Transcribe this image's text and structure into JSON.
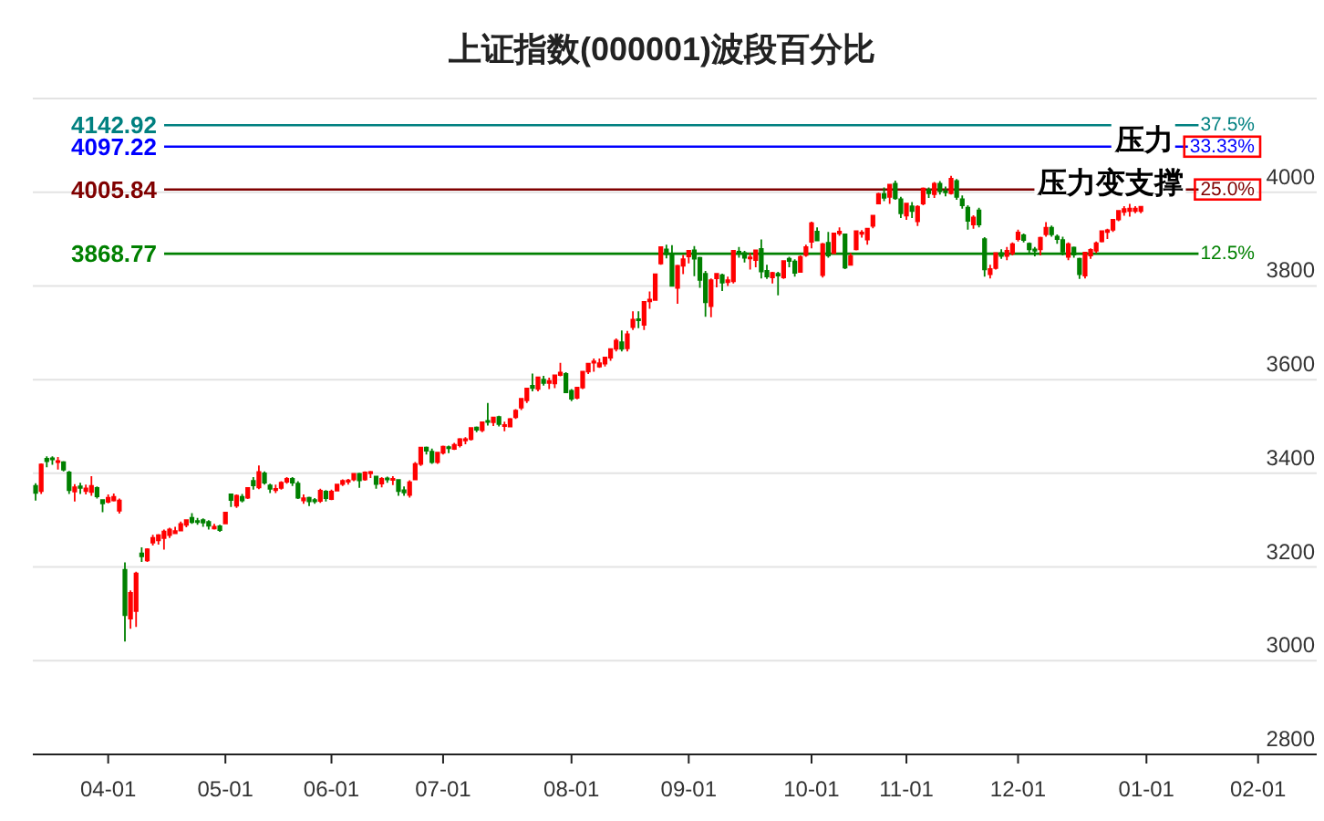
{
  "chart_data": {
    "type": "candlestick",
    "title": "上证指数(000001)波段百分比",
    "categories": [
      null,
      null,
      null,
      null,
      null,
      null,
      null,
      null,
      null,
      null,
      null,
      null,
      null,
      "04-01",
      null,
      null,
      null,
      null,
      null,
      null,
      null,
      null,
      null,
      null,
      null,
      null,
      null,
      null,
      null,
      null,
      null,
      null,
      null,
      null,
      "05-01",
      null,
      null,
      null,
      null,
      null,
      null,
      null,
      null,
      null,
      null,
      null,
      null,
      null,
      null,
      null,
      null,
      null,
      null,
      "06-01",
      null,
      null,
      null,
      null,
      null,
      null,
      null,
      null,
      null,
      null,
      null,
      null,
      null,
      null,
      null,
      null,
      null,
      null,
      null,
      "07-01",
      null,
      null,
      null,
      null,
      null,
      null,
      null,
      null,
      null,
      null,
      null,
      null,
      null,
      null,
      null,
      null,
      null,
      null,
      null,
      null,
      null,
      null,
      "08-01",
      null,
      null,
      null,
      null,
      null,
      null,
      null,
      null,
      null,
      null,
      null,
      null,
      null,
      null,
      null,
      null,
      null,
      null,
      null,
      null,
      "09-01",
      null,
      null,
      null,
      null,
      null,
      null,
      null,
      null,
      null,
      null,
      null,
      null,
      null,
      null,
      null,
      null,
      null,
      null,
      null,
      null,
      null,
      "10-01",
      null,
      null,
      null,
      null,
      null,
      null,
      null,
      null,
      null,
      null,
      null,
      null,
      null,
      null,
      null,
      null,
      "11-01",
      null,
      null,
      null,
      null,
      null,
      null,
      null,
      null,
      null,
      null,
      null,
      null,
      null,
      null,
      null,
      null,
      null,
      null,
      null,
      "12-01",
      null,
      null,
      null,
      null,
      null,
      null,
      null,
      null,
      null,
      null,
      null,
      null,
      null,
      null,
      null,
      null,
      null,
      null,
      null,
      null,
      null,
      null,
      "01-01",
      null,
      null,
      null,
      null,
      null,
      null,
      null,
      null,
      null,
      null,
      null,
      null,
      null,
      null,
      null,
      null,
      null,
      null,
      null,
      "02-01",
      null,
      null,
      null,
      null,
      null,
      null,
      null,
      null,
      null,
      null
    ],
    "ohlc": [
      [
        3373,
        3379,
        3342,
        3358
      ],
      [
        3362,
        3421,
        3356,
        3419
      ],
      [
        3431,
        3436,
        3413,
        3426
      ],
      [
        3432,
        3436,
        3418,
        3430
      ],
      [
        3425,
        3435,
        3408,
        3426
      ],
      [
        3424,
        3426,
        3404,
        3408
      ],
      [
        3402,
        3405,
        3356,
        3364
      ],
      [
        3361,
        3377,
        3340,
        3370
      ],
      [
        3372,
        3380,
        3356,
        3369
      ],
      [
        3362,
        3376,
        3355,
        3368
      ],
      [
        3360,
        3394,
        3352,
        3373
      ],
      [
        3369,
        3372,
        3346,
        3351
      ],
      [
        3343,
        3344,
        3317,
        3336
      ],
      [
        3339,
        3355,
        3336,
        3348
      ],
      [
        3342,
        3357,
        3340,
        3350
      ],
      [
        3320,
        3346,
        3314,
        3342
      ],
      [
        3194,
        3210,
        3041,
        3097
      ],
      [
        3090,
        3150,
        3068,
        3145
      ],
      [
        3106,
        3190,
        3072,
        3186
      ],
      [
        3229,
        3242,
        3211,
        3223
      ],
      [
        3214,
        3240,
        3211,
        3238
      ],
      [
        3252,
        3269,
        3246,
        3262
      ],
      [
        3257,
        3270,
        3248,
        3268
      ],
      [
        3262,
        3280,
        3237,
        3276
      ],
      [
        3268,
        3284,
        3262,
        3280
      ],
      [
        3272,
        3286,
        3270,
        3277
      ],
      [
        3278,
        3297,
        3276,
        3292
      ],
      [
        3290,
        3301,
        3285,
        3300
      ],
      [
        3305,
        3315,
        3292,
        3296
      ],
      [
        3298,
        3305,
        3290,
        3297
      ],
      [
        3300,
        3304,
        3286,
        3295
      ],
      [
        3296,
        3300,
        3280,
        3288
      ],
      [
        3282,
        3292,
        3280,
        3286
      ],
      [
        3287,
        3290,
        3275,
        3279
      ],
      [
        3293,
        3317,
        3292,
        3316
      ],
      [
        3355,
        3357,
        3328,
        3343
      ],
      [
        3331,
        3355,
        3326,
        3352
      ],
      [
        3350,
        3356,
        3338,
        3342
      ],
      [
        3348,
        3370,
        3345,
        3369
      ],
      [
        3384,
        3392,
        3365,
        3374
      ],
      [
        3370,
        3417,
        3366,
        3403
      ],
      [
        3400,
        3404,
        3376,
        3380
      ],
      [
        3374,
        3378,
        3358,
        3367
      ],
      [
        3364,
        3376,
        3358,
        3367
      ],
      [
        3369,
        3383,
        3365,
        3380
      ],
      [
        3382,
        3392,
        3378,
        3388
      ],
      [
        3388,
        3392,
        3373,
        3380
      ],
      [
        3378,
        3383,
        3345,
        3348
      ],
      [
        3342,
        3355,
        3335,
        3347
      ],
      [
        3348,
        3350,
        3330,
        3340
      ],
      [
        3343,
        3347,
        3335,
        3340
      ],
      [
        3341,
        3367,
        3337,
        3363
      ],
      [
        3361,
        3364,
        3340,
        3347
      ],
      [
        3345,
        3365,
        3343,
        3361
      ],
      [
        3363,
        3377,
        3362,
        3376
      ],
      [
        3377,
        3387,
        3373,
        3384
      ],
      [
        3382,
        3388,
        3376,
        3385
      ],
      [
        3387,
        3400,
        3383,
        3399
      ],
      [
        3399,
        3401,
        3369,
        3385
      ],
      [
        3387,
        3404,
        3384,
        3402
      ],
      [
        3400,
        3405,
        3390,
        3403
      ],
      [
        3393,
        3395,
        3367,
        3377
      ],
      [
        3378,
        3392,
        3370,
        3388
      ],
      [
        3389,
        3393,
        3380,
        3387
      ],
      [
        3387,
        3394,
        3375,
        3388
      ],
      [
        3386,
        3387,
        3352,
        3362
      ],
      [
        3364,
        3372,
        3352,
        3359
      ],
      [
        3354,
        3385,
        3348,
        3381
      ],
      [
        3387,
        3424,
        3385,
        3420
      ],
      [
        3420,
        3456,
        3416,
        3455
      ],
      [
        3455,
        3457,
        3440,
        3448
      ],
      [
        3446,
        3453,
        3420,
        3424
      ],
      [
        3424,
        3445,
        3420,
        3444
      ],
      [
        3444,
        3459,
        3440,
        3457
      ],
      [
        3456,
        3459,
        3443,
        3455
      ],
      [
        3452,
        3465,
        3450,
        3461
      ],
      [
        3460,
        3475,
        3455,
        3473
      ],
      [
        3470,
        3477,
        3462,
        3473
      ],
      [
        3473,
        3497,
        3470,
        3497
      ],
      [
        3498,
        3500,
        3488,
        3493
      ],
      [
        3492,
        3510,
        3488,
        3509
      ],
      [
        3512,
        3550,
        3502,
        3510
      ],
      [
        3509,
        3521,
        3501,
        3519
      ],
      [
        3520,
        3523,
        3500,
        3505
      ],
      [
        3501,
        3510,
        3490,
        3503
      ],
      [
        3500,
        3518,
        3498,
        3516
      ],
      [
        3520,
        3537,
        3516,
        3534
      ],
      [
        3540,
        3561,
        3535,
        3559
      ],
      [
        3556,
        3581,
        3550,
        3581
      ],
      [
        3587,
        3613,
        3575,
        3582
      ],
      [
        3580,
        3605,
        3575,
        3605
      ],
      [
        3600,
        3608,
        3587,
        3593
      ],
      [
        3593,
        3604,
        3580,
        3597
      ],
      [
        3592,
        3609,
        3582,
        3609
      ],
      [
        3610,
        3636,
        3607,
        3615
      ],
      [
        3612,
        3616,
        3571,
        3573
      ],
      [
        3576,
        3580,
        3554,
        3559
      ],
      [
        3561,
        3583,
        3558,
        3583
      ],
      [
        3583,
        3617,
        3580,
        3617
      ],
      [
        3617,
        3634,
        3612,
        3634
      ],
      [
        3636,
        3645,
        3617,
        3639
      ],
      [
        3628,
        3645,
        3625,
        3635
      ],
      [
        3634,
        3648,
        3628,
        3647
      ],
      [
        3647,
        3667,
        3640,
        3665
      ],
      [
        3666,
        3688,
        3660,
        3683
      ],
      [
        3680,
        3705,
        3660,
        3666
      ],
      [
        3667,
        3704,
        3660,
        3697
      ],
      [
        3712,
        3746,
        3706,
        3728
      ],
      [
        3729,
        3746,
        3710,
        3727
      ],
      [
        3717,
        3767,
        3706,
        3766
      ],
      [
        3767,
        3788,
        3751,
        3771
      ],
      [
        3770,
        3826,
        3770,
        3825
      ],
      [
        3848,
        3883,
        3845,
        3883
      ],
      [
        3878,
        3888,
        3859,
        3868
      ],
      [
        3868,
        3887,
        3800,
        3800
      ],
      [
        3796,
        3845,
        3762,
        3843
      ],
      [
        3843,
        3866,
        3825,
        3857
      ],
      [
        3863,
        3875,
        3848,
        3875
      ],
      [
        3876,
        3885,
        3821,
        3858
      ],
      [
        3860,
        3862,
        3796,
        3813
      ],
      [
        3826,
        3832,
        3734,
        3765
      ],
      [
        3757,
        3816,
        3733,
        3812
      ],
      [
        3816,
        3827,
        3797,
        3826
      ],
      [
        3823,
        3826,
        3789,
        3807
      ],
      [
        3808,
        3820,
        3800,
        3812
      ],
      [
        3810,
        3875,
        3805,
        3875
      ],
      [
        3873,
        3883,
        3860,
        3870
      ],
      [
        3870,
        3875,
        3850,
        3860
      ],
      [
        3859,
        3870,
        3835,
        3861
      ],
      [
        3855,
        3877,
        3840,
        3876
      ],
      [
        3879,
        3899,
        3816,
        3831
      ],
      [
        3832,
        3845,
        3815,
        3820
      ],
      [
        3818,
        3830,
        3805,
        3828
      ],
      [
        3826,
        3830,
        3780,
        3822
      ],
      [
        3818,
        3855,
        3815,
        3853
      ],
      [
        3858,
        3862,
        3840,
        3853
      ],
      [
        3852,
        3857,
        3820,
        3828
      ],
      [
        3830,
        3865,
        3828,
        3862
      ],
      [
        3866,
        3888,
        3862,
        3883
      ],
      [
        3894,
        3937,
        3880,
        3934
      ],
      [
        3916,
        3925,
        3897,
        3897
      ],
      [
        3823,
        3892,
        3818,
        3889
      ],
      [
        3892,
        3915,
        3860,
        3865
      ],
      [
        3870,
        3913,
        3868,
        3912
      ],
      [
        3912,
        3925,
        3907,
        3916
      ],
      [
        3910,
        3911,
        3836,
        3839
      ],
      [
        3845,
        3870,
        3845,
        3864
      ],
      [
        3878,
        3917,
        3876,
        3917
      ],
      [
        3911,
        3919,
        3903,
        3914
      ],
      [
        3899,
        3924,
        3888,
        3922
      ],
      [
        3928,
        3951,
        3923,
        3950
      ],
      [
        3976,
        3999,
        3975,
        3996
      ],
      [
        3996,
        4010,
        3981,
        3988
      ],
      [
        3990,
        4016,
        3975,
        4016
      ],
      [
        4018,
        4025,
        3984,
        3987
      ],
      [
        3985,
        3990,
        3945,
        3955
      ],
      [
        3950,
        3976,
        3941,
        3976
      ],
      [
        3970,
        3979,
        3945,
        3960
      ],
      [
        3938,
        3972,
        3928,
        3969
      ],
      [
        3976,
        4010,
        3972,
        4008
      ],
      [
        4005,
        4010,
        3988,
        3998
      ],
      [
        3996,
        4022,
        3988,
        4018
      ],
      [
        4018,
        4024,
        3995,
        4002
      ],
      [
        4002,
        4012,
        3991,
        4000
      ],
      [
        3998,
        4035,
        3995,
        4029
      ],
      [
        4024,
        4028,
        3984,
        3990
      ],
      [
        3985,
        3993,
        3965,
        3972
      ],
      [
        3967,
        3972,
        3920,
        3939
      ],
      [
        3931,
        3951,
        3922,
        3946
      ],
      [
        3961,
        3967,
        3925,
        3931
      ],
      [
        3900,
        3904,
        3820,
        3835
      ],
      [
        3825,
        3845,
        3816,
        3836
      ],
      [
        3838,
        3872,
        3835,
        3870
      ],
      [
        3870,
        3878,
        3858,
        3864
      ],
      [
        3864,
        3883,
        3855,
        3875
      ],
      [
        3870,
        3893,
        3865,
        3889
      ],
      [
        3900,
        3920,
        3895,
        3914
      ],
      [
        3908,
        3912,
        3893,
        3898
      ],
      [
        3890,
        3893,
        3870,
        3878
      ],
      [
        3878,
        3883,
        3863,
        3875
      ],
      [
        3878,
        3905,
        3865,
        3903
      ],
      [
        3910,
        3936,
        3905,
        3924
      ],
      [
        3924,
        3929,
        3905,
        3910
      ],
      [
        3905,
        3910,
        3890,
        3900
      ],
      [
        3898,
        3905,
        3865,
        3873
      ],
      [
        3862,
        3893,
        3855,
        3889
      ],
      [
        3882,
        3884,
        3860,
        3867
      ],
      [
        3858,
        3860,
        3815,
        3825
      ],
      [
        3822,
        3872,
        3816,
        3871
      ],
      [
        3865,
        3880,
        3858,
        3877
      ],
      [
        3875,
        3895,
        3870,
        3891
      ],
      [
        3895,
        3917,
        3893,
        3917
      ],
      [
        3915,
        3922,
        3900,
        3919
      ],
      [
        3920,
        3941,
        3915,
        3941
      ],
      [
        3942,
        3962,
        3938,
        3960
      ],
      [
        3958,
        3970,
        3950,
        3964
      ],
      [
        3960,
        3975,
        3948,
        3965
      ],
      [
        3960,
        3970,
        3955,
        3965
      ],
      [
        3960,
        3970,
        3955,
        3969
      ],
      null,
      null,
      null,
      null,
      null,
      null,
      null,
      null,
      null,
      null,
      null,
      null,
      null,
      null,
      null,
      null,
      null,
      null,
      null,
      null,
      null,
      null,
      null,
      null,
      null,
      null,
      null,
      null,
      null,
      null,
      null
    ],
    "ylim": [
      2800,
      4200
    ],
    "yticks": [
      2800,
      3000,
      3200,
      3400,
      3600,
      3800,
      4000,
      {
        "value": 4200,
        "label": null
      }
    ],
    "grid": "y",
    "ref_lines": [
      {
        "axis": "y",
        "value": 4142.92,
        "label": "4142.92",
        "color": "#008080"
      },
      {
        "axis": "y",
        "value": 4097.22,
        "label": "4097.22",
        "color": "#0000ff"
      },
      {
        "axis": "y",
        "value": 4005.84,
        "label": "4005.84",
        "color": "#800000"
      },
      {
        "axis": "y",
        "value": 3868.77,
        "label": "3868.77",
        "color": "#008000"
      }
    ],
    "annotations": [
      {
        "text": "37.5%",
        "y": 4142.92
      },
      {
        "text": "33.33%",
        "y": 4097.22
      },
      {
        "text": "25.0%",
        "y": 4005.84
      },
      {
        "text": "12.5%",
        "y": 3868.77
      },
      {
        "text": "压力",
        "y": 4097.22
      },
      {
        "text": "压力变支撑",
        "y": 4005.84
      }
    ]
  }
}
